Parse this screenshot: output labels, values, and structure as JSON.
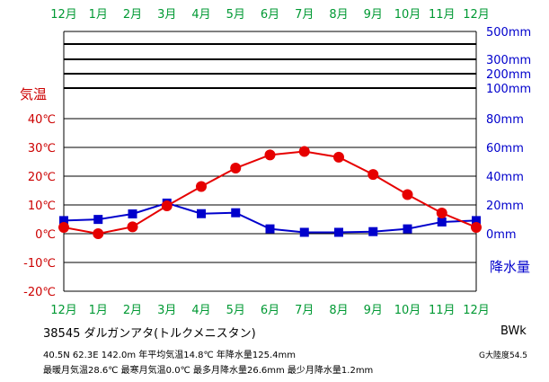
{
  "chart_data": {
    "type": "line",
    "months": [
      "12月",
      "1月",
      "2月",
      "3月",
      "4月",
      "5月",
      "6月",
      "7月",
      "8月",
      "9月",
      "10月",
      "11月",
      "12月"
    ],
    "temp_axis": {
      "label": "気温",
      "ticks": [
        "40℃",
        "30℃",
        "20℃",
        "10℃",
        "0℃",
        "-10℃",
        "-20℃"
      ],
      "tick_values": [
        40,
        30,
        20,
        10,
        0,
        -10,
        -20
      ],
      "range": [
        -20,
        40
      ]
    },
    "precip_axis": {
      "label": "降水量",
      "ticks": [
        "500mm",
        "300mm",
        "200mm",
        "100mm",
        "80mm",
        "60mm",
        "40mm",
        "20mm",
        "0mm"
      ],
      "linear_range": [
        0,
        100
      ]
    },
    "series": [
      {
        "name": "気温",
        "unit": "℃",
        "color": "#e60000",
        "marker": "circle",
        "values": [
          2.2,
          0.0,
          2.4,
          9.7,
          16.4,
          22.8,
          27.4,
          28.6,
          26.6,
          20.6,
          13.6,
          7.2,
          2.2
        ]
      },
      {
        "name": "降水量",
        "unit": "mm",
        "color": "#0000cc",
        "marker": "square",
        "values": [
          11.4,
          12.4,
          17.2,
          26.6,
          17.4,
          18.2,
          4.2,
          1.2,
          1.2,
          1.8,
          4.2,
          10.2,
          11.4
        ]
      }
    ]
  },
  "station": {
    "name_line": "38545  ダルガンアタ(トルクメニスタン)",
    "stats_line1": "40.5N  62.3E  142.0m  年平均気温14.8℃  年降水量125.4mm",
    "stats_line2": "最暖月気温28.6℃  最寒月気温0.0℃  最多月降水量26.6mm  最少月降水量1.2mm",
    "climate_code": "BWk",
    "continentality": "G大陸度54.5"
  },
  "colors": {
    "month_labels": "#009933",
    "temp_axis": "#cc0000",
    "precip_axis": "#0000cc",
    "grid": "#000000"
  }
}
